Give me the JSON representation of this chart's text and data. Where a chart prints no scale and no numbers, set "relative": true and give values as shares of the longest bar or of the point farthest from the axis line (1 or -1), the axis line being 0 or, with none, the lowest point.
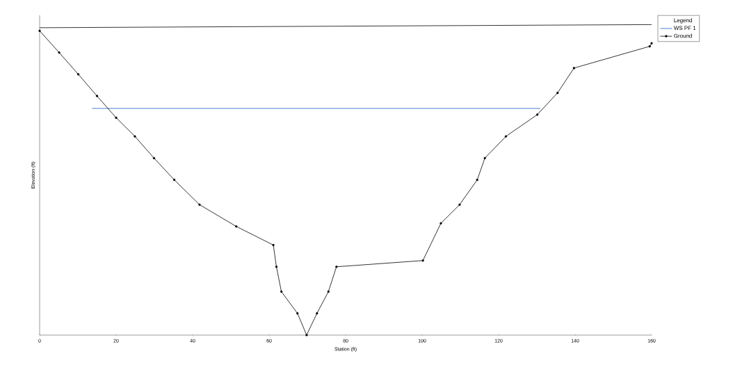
{
  "chart_data": {
    "type": "line",
    "relative": true,
    "xlabel": "Station (ft)",
    "ylabel": "Elevation (ft)",
    "legend_title": "Legend",
    "legend": "right",
    "xlim": [
      0,
      160
    ],
    "xticks": [
      0,
      20,
      40,
      60,
      80,
      100,
      120,
      140,
      160
    ],
    "series": [
      {
        "name": "WS PF 1",
        "color": "#2060c0",
        "x": [
          13.7,
          130.9
        ],
        "values": [
          0.73,
          0.73
        ]
      },
      {
        "name": "Ground",
        "color": "#000000",
        "marker": "circle",
        "x": [
          0,
          5.1,
          10.1,
          15.0,
          20.0,
          24.9,
          29.9,
          35.2,
          41.8,
          51.4,
          61.1,
          61.9,
          63.2,
          67.4,
          69.8,
          72.5,
          75.5,
          77.6,
          100.2,
          104.9,
          109.8,
          114.4,
          116.4,
          121.9,
          130.1,
          135.4,
          139.7,
          159.5,
          160
        ],
        "values": [
          0.98,
          0.91,
          0.84,
          0.77,
          0.7,
          0.64,
          0.57,
          0.5,
          0.42,
          0.35,
          0.29,
          0.22,
          0.14,
          0.07,
          0,
          0.07,
          0.14,
          0.22,
          0.24,
          0.36,
          0.42,
          0.5,
          0.57,
          0.64,
          0.71,
          0.78,
          0.86,
          0.93,
          0.94
        ]
      },
      {
        "color": "#000000",
        "x": [
          0,
          160
        ],
        "values": [
          0.99,
          1.0
        ]
      }
    ]
  }
}
